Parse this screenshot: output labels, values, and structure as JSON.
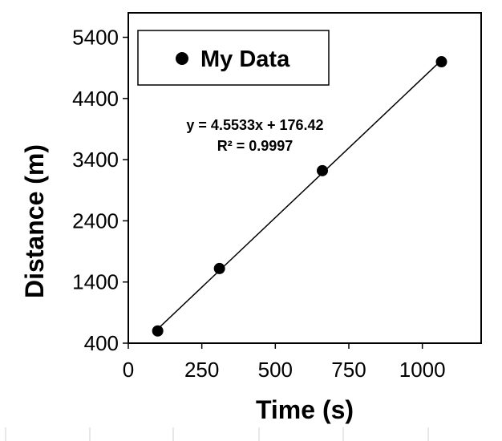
{
  "chart_data": {
    "type": "scatter",
    "xlabel": "Time (s)",
    "ylabel": "Distance (m)",
    "xlim": [
      0,
      1200
    ],
    "ylim": [
      400,
      5800
    ],
    "x_ticks": [
      0,
      250,
      500,
      750,
      1000
    ],
    "x_tick_labels": [
      "0",
      "250",
      "500",
      "750",
      "1000"
    ],
    "y_ticks": [
      400,
      1400,
      2400,
      3400,
      4400,
      5400
    ],
    "y_tick_labels": [
      "400",
      "1400",
      "2400",
      "3400",
      "4400",
      "5400"
    ],
    "series": [
      {
        "name": "My Data",
        "color": "#000000",
        "points": [
          {
            "x": 100,
            "y": 600
          },
          {
            "x": 310,
            "y": 1620
          },
          {
            "x": 660,
            "y": 3220
          },
          {
            "x": 1065,
            "y": 5000
          }
        ]
      }
    ],
    "trendline": {
      "type": "linear",
      "slope": 4.5533,
      "intercept": 176.42,
      "x_range": [
        100,
        1065
      ],
      "equation": "y = 4.5533x + 176.42",
      "r_squared": "R² = 0.9997"
    },
    "legend": {
      "position": "top-left",
      "entries": [
        "My Data"
      ]
    },
    "grid": false
  }
}
